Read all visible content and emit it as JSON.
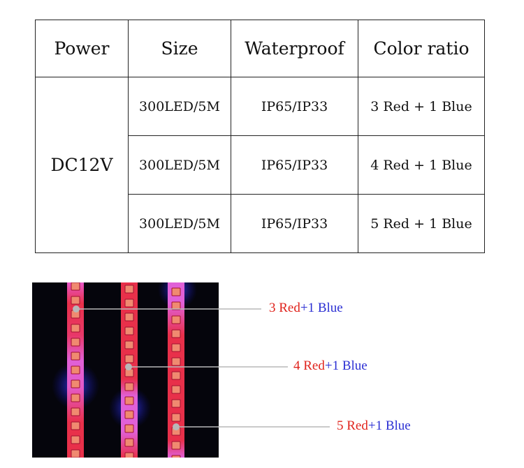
{
  "table": {
    "headers": [
      "Power",
      "Size",
      "Waterproof",
      "Color ratio"
    ],
    "power": "DC12V",
    "rows": [
      {
        "size": "300LED/5M",
        "waterproof": "IP65/IP33",
        "ratio": "3 Red + 1 Blue"
      },
      {
        "size": "300LED/5M",
        "waterproof": "IP65/IP33",
        "ratio": "4 Red + 1 Blue"
      },
      {
        "size": "300LED/5M",
        "waterproof": "IP65/IP33",
        "ratio": "5 Red + 1 Blue"
      }
    ]
  },
  "photo": {
    "callouts": [
      {
        "red": "3 Red",
        "blue": "+1 Blue"
      },
      {
        "red": "4 Red",
        "blue": "+1 Blue"
      },
      {
        "red": "5 Red",
        "blue": "+1 Blue"
      }
    ],
    "colors": {
      "red": "#e0231c",
      "blue": "#2b2fd3",
      "strip_pink": "#e84fc8",
      "strip_red": "#e8253a"
    }
  }
}
